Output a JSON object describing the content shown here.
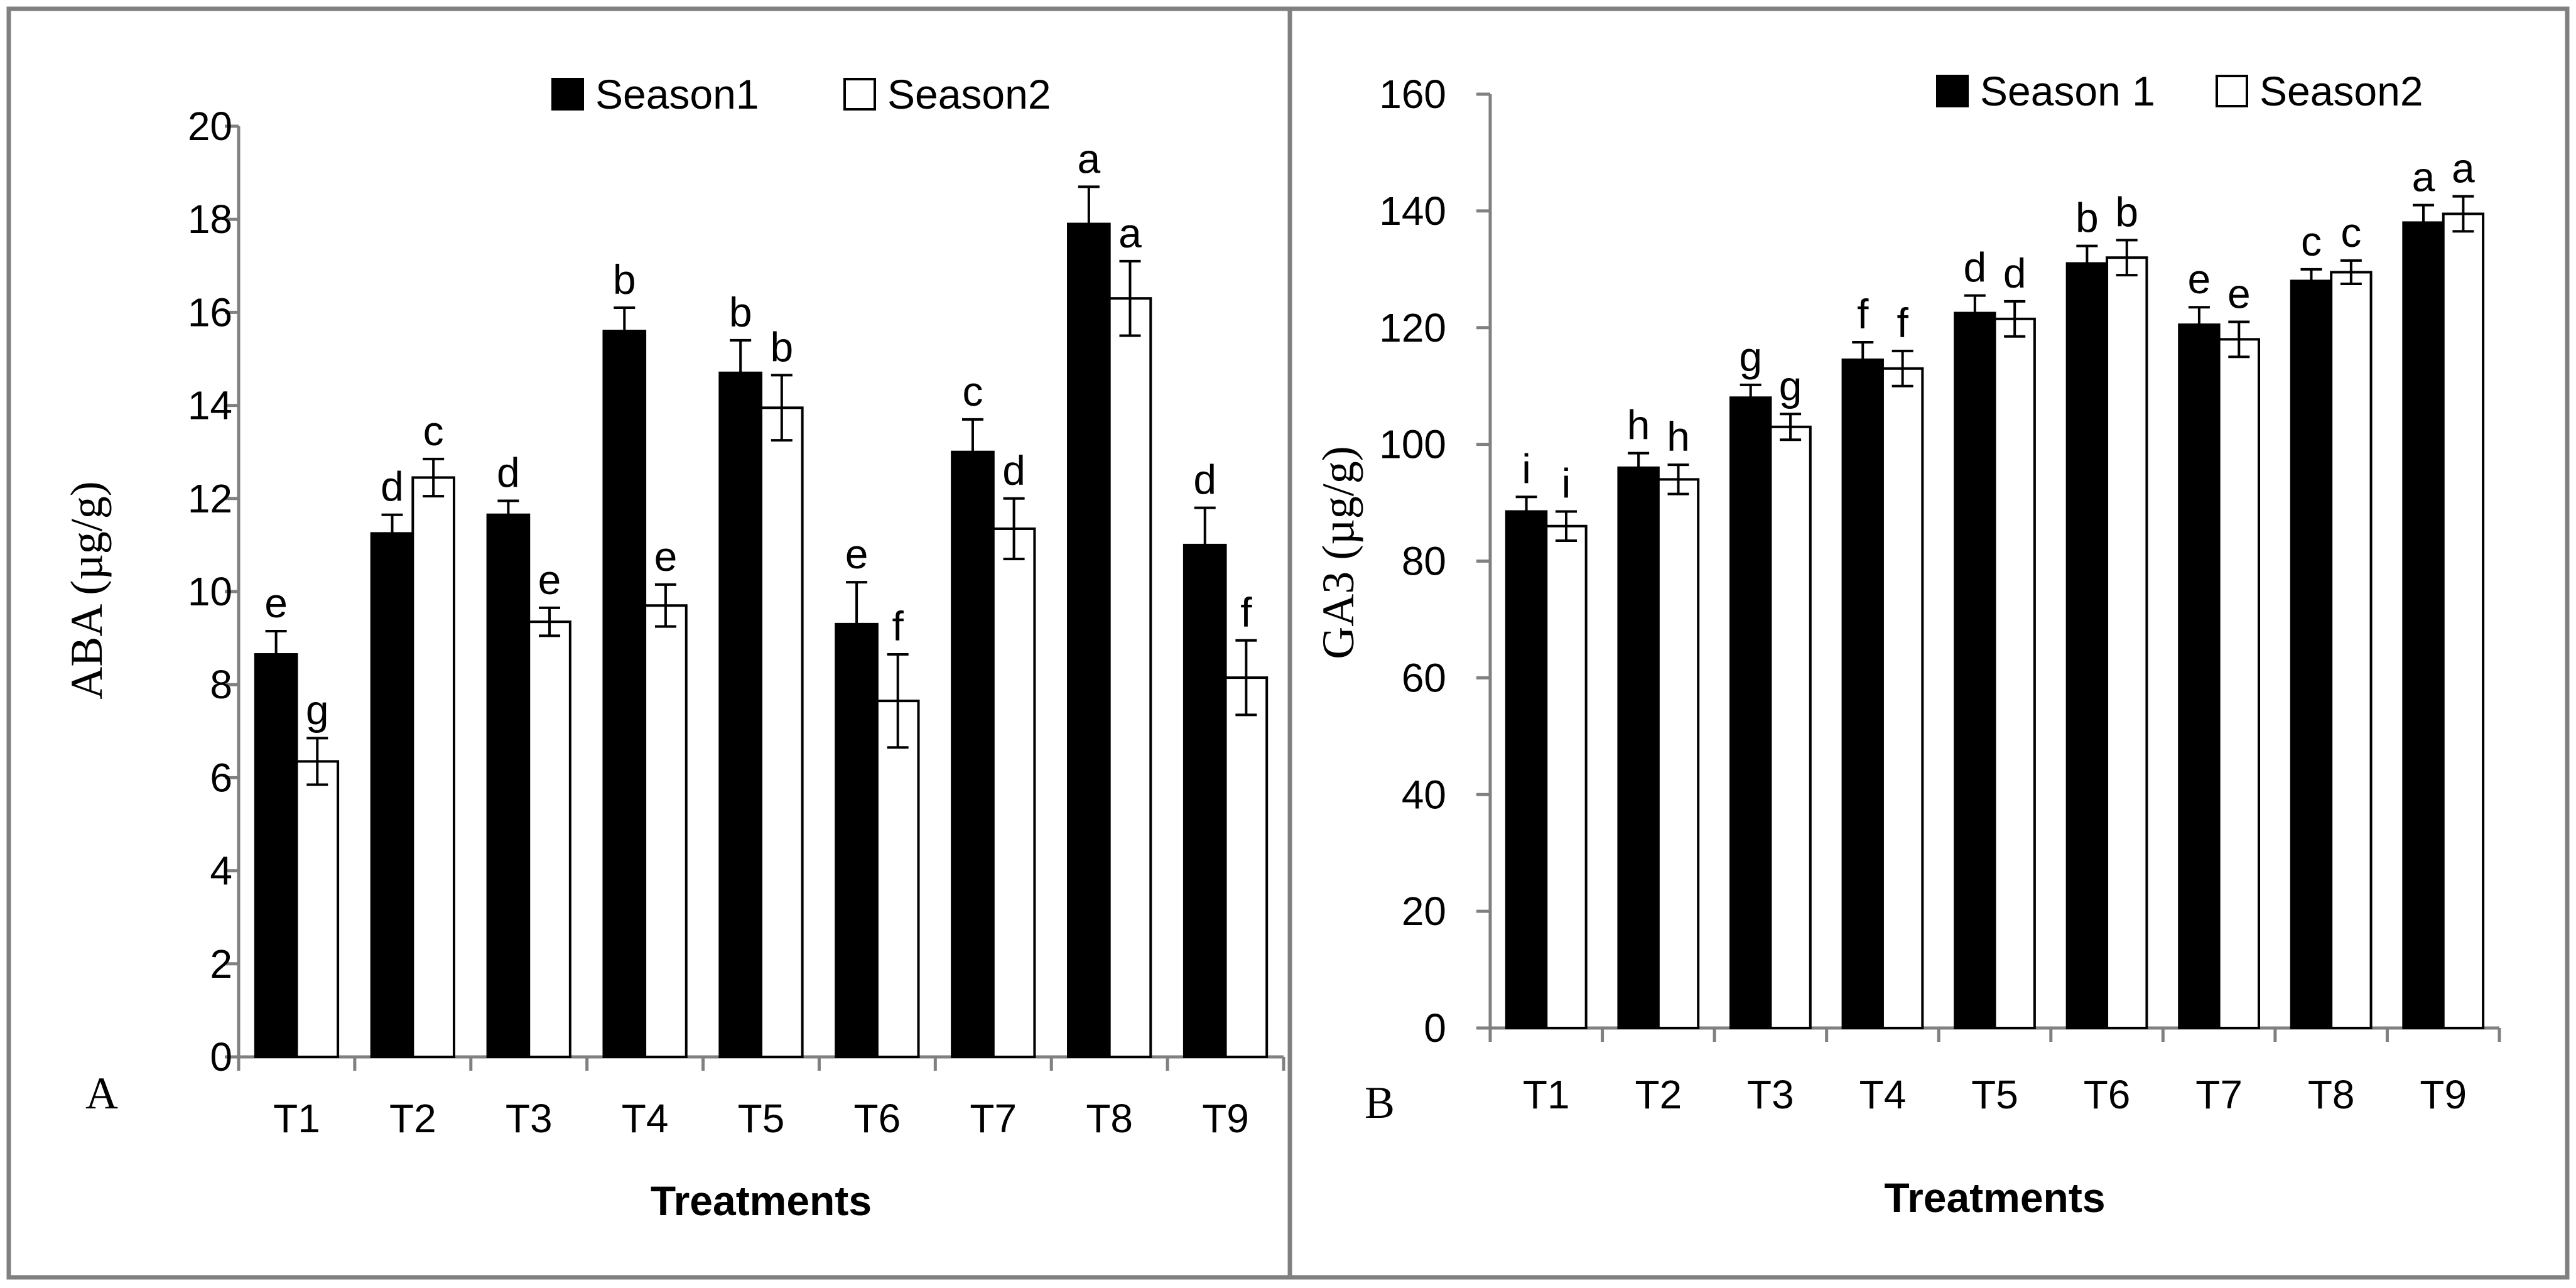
{
  "chart_data": [
    {
      "type": "bar",
      "panel_label": "A",
      "xlabel": "Treatments",
      "ylabel": "ABA (µg/g)",
      "ylim": [
        0,
        20
      ],
      "yticks": [
        0,
        2,
        4,
        6,
        8,
        10,
        12,
        14,
        16,
        18,
        20
      ],
      "categories": [
        "T1",
        "T2",
        "T3",
        "T4",
        "T5",
        "T6",
        "T7",
        "T8",
        "T9"
      ],
      "legend_position": "top-center",
      "series": [
        {
          "name": "Season1",
          "color": "#000000",
          "values": [
            8.65,
            11.25,
            11.65,
            15.6,
            14.7,
            9.3,
            13.0,
            17.9,
            11.0
          ],
          "errors": [
            0.5,
            0.4,
            0.3,
            0.5,
            0.7,
            0.9,
            0.7,
            0.8,
            0.8
          ],
          "letters": [
            "e",
            "d",
            "d",
            "b",
            "b",
            "e",
            "c",
            "a",
            "d"
          ]
        },
        {
          "name": "Season2",
          "color": "#ffffff",
          "values": [
            6.35,
            12.45,
            9.35,
            9.7,
            13.95,
            7.65,
            11.35,
            16.3,
            8.15
          ],
          "errors": [
            0.5,
            0.4,
            0.3,
            0.45,
            0.7,
            1.0,
            0.65,
            0.8,
            0.8
          ],
          "letters": [
            "g",
            "c",
            "e",
            "e",
            "b",
            "f",
            "d",
            "a",
            "f"
          ]
        }
      ]
    },
    {
      "type": "bar",
      "panel_label": "B",
      "xlabel": "Treatments",
      "ylabel": "GA3 (µg/g)",
      "ylim": [
        0,
        160
      ],
      "yticks": [
        0,
        20,
        40,
        60,
        80,
        100,
        120,
        140,
        160
      ],
      "categories": [
        "T1",
        "T2",
        "T3",
        "T4",
        "T5",
        "T6",
        "T7",
        "T8",
        "T9"
      ],
      "legend_position": "top-right",
      "series": [
        {
          "name": "Season 1",
          "color": "#000000",
          "values": [
            88.5,
            96,
            108,
            114.5,
            122.5,
            131,
            120.5,
            128,
            138
          ],
          "errors": [
            2.5,
            2.5,
            2.2,
            3,
            3,
            3,
            3,
            2,
            3
          ],
          "letters": [
            "i",
            "h",
            "g",
            "f",
            "d",
            "b",
            "e",
            "c",
            "a"
          ]
        },
        {
          "name": "Season2",
          "color": "#ffffff",
          "values": [
            86,
            94,
            103,
            113,
            121.5,
            132,
            118,
            129.5,
            139.5
          ],
          "errors": [
            2.5,
            2.5,
            2.2,
            3,
            3,
            3,
            3,
            2,
            3
          ],
          "letters": [
            "i",
            "h",
            "g",
            "f",
            "d",
            "b",
            "e",
            "c",
            "a"
          ]
        }
      ]
    }
  ]
}
